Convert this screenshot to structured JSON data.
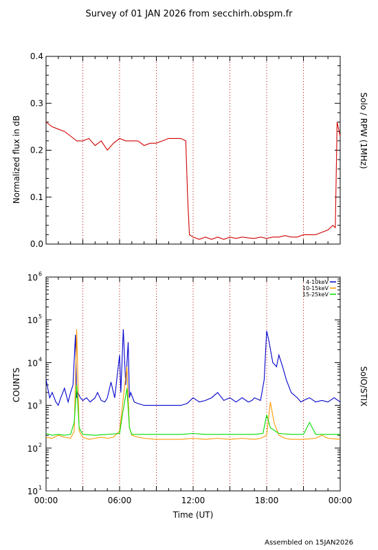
{
  "page": {
    "title": "Survey of 01 JAN 2026 from secchirh.obspm.fr",
    "footer": "Assembled on  15JAN2026"
  },
  "chart_data": [
    {
      "type": "line",
      "panel": "top",
      "ylabel": "Normalized flux in dB",
      "right_label": "Solo / RPW (1MHz)",
      "xlim": [
        0,
        24
      ],
      "ylim": [
        0,
        0.4
      ],
      "y_ticks": [
        "0.0",
        "0.1",
        "0.2",
        "0.3",
        "0.4"
      ],
      "y_tick_values": [
        0,
        0.1,
        0.2,
        0.3,
        0.4
      ],
      "grid_x_hours": [
        3,
        6,
        9,
        12,
        15,
        18,
        21
      ],
      "series": [
        {
          "color": "#d00000",
          "x": [
            0,
            0.5,
            1,
            1.5,
            2,
            2.5,
            3,
            3.5,
            4,
            4.5,
            5,
            5.5,
            6,
            6.5,
            7,
            7.5,
            8,
            8.5,
            9,
            9.5,
            10,
            10.5,
            11,
            11.4,
            11.55,
            11.7,
            12,
            12.5,
            13,
            13.5,
            14,
            14.5,
            15,
            15.5,
            16,
            16.5,
            17,
            17.5,
            18,
            18.5,
            19,
            19.5,
            20,
            20.5,
            21,
            21.5,
            22,
            22.5,
            23,
            23.4,
            23.6,
            23.75,
            24
          ],
          "y": [
            0.26,
            0.25,
            0.245,
            0.24,
            0.23,
            0.22,
            0.22,
            0.225,
            0.21,
            0.22,
            0.2,
            0.215,
            0.225,
            0.22,
            0.22,
            0.22,
            0.21,
            0.215,
            0.215,
            0.22,
            0.225,
            0.225,
            0.225,
            0.22,
            0.1,
            0.02,
            0.015,
            0.01,
            0.015,
            0.01,
            0.015,
            0.01,
            0.015,
            0.012,
            0.015,
            0.013,
            0.012,
            0.015,
            0.012,
            0.015,
            0.015,
            0.018,
            0.015,
            0.015,
            0.02,
            0.02,
            0.02,
            0.025,
            0.03,
            0.04,
            0.035,
            0.26,
            0.23
          ]
        }
      ]
    },
    {
      "type": "line",
      "panel": "bottom",
      "ylabel": "COUNTS",
      "xlabel": "Time (UT)",
      "right_label": "SolO/STIX",
      "yscale": "log",
      "xlim": [
        0,
        24
      ],
      "ylim": [
        10,
        1000000
      ],
      "y_ticks": [
        {
          "base": "10",
          "exp": "1",
          "value": 10
        },
        {
          "base": "10",
          "exp": "2",
          "value": 100
        },
        {
          "base": "10",
          "exp": "3",
          "value": 1000
        },
        {
          "base": "10",
          "exp": "4",
          "value": 10000
        },
        {
          "base": "10",
          "exp": "5",
          "value": 100000
        },
        {
          "base": "10",
          "exp": "6",
          "value": 1000000
        }
      ],
      "x_ticks": [
        "00:00",
        "06:00",
        "12:00",
        "18:00",
        "00:00"
      ],
      "x_tick_hours": [
        0,
        6,
        12,
        18,
        24
      ],
      "grid_x_hours": [
        3,
        6,
        9,
        12,
        15,
        18,
        21
      ],
      "legend_position": "top-right",
      "series": [
        {
          "name": "4-10keV",
          "color": "#0000cc",
          "x": [
            0,
            0.3,
            0.5,
            0.8,
            1,
            1.2,
            1.5,
            1.8,
            2,
            2.2,
            2.4,
            2.5,
            2.6,
            2.8,
            3,
            3.3,
            3.6,
            4,
            4.2,
            4.5,
            4.8,
            5,
            5.3,
            5.6,
            6,
            6.1,
            6.3,
            6.5,
            6.7,
            6.8,
            6.9,
            7.2,
            7.5,
            8,
            8.5,
            9,
            9.5,
            10,
            10.5,
            10.8,
            11,
            11.5,
            12,
            12.5,
            13,
            13.5,
            14,
            14.5,
            15,
            15.5,
            16,
            16.5,
            16.8,
            17,
            17.5,
            17.8,
            18,
            18.2,
            18.5,
            18.8,
            19,
            19.3,
            19.6,
            20,
            20.5,
            20.8,
            21,
            21.5,
            22,
            22.5,
            23,
            23.5,
            24
          ],
          "y": [
            4000,
            1500,
            2000,
            1200,
            1000,
            1500,
            2500,
            1200,
            2000,
            3000,
            45000,
            1500,
            2000,
            1500,
            1300,
            1500,
            1200,
            1500,
            2000,
            1300,
            1200,
            1500,
            3500,
            1500,
            15000,
            2000,
            60000,
            3000,
            30000,
            1500,
            2000,
            1200,
            1100,
            1000,
            1000,
            1000,
            1000,
            1000,
            1000,
            1000,
            1000,
            1100,
            1500,
            1200,
            1300,
            1500,
            2000,
            1300,
            1500,
            1200,
            1500,
            1200,
            1300,
            1500,
            1300,
            4000,
            55000,
            30000,
            10000,
            8000,
            15000,
            8000,
            4000,
            2000,
            1500,
            1200,
            1300,
            1500,
            1200,
            1300,
            1200,
            1500,
            1200
          ]
        },
        {
          "name": "10-15keV",
          "color": "#ff9900",
          "x": [
            0,
            0.5,
            1,
            1.5,
            2,
            2.3,
            2.5,
            2.7,
            3,
            3.5,
            4,
            4.5,
            5,
            5.5,
            6,
            6.3,
            6.6,
            6.8,
            7,
            7.5,
            8,
            9,
            10,
            11,
            12,
            13,
            14,
            15,
            16,
            17,
            17.5,
            18,
            18.3,
            18.6,
            19,
            19.5,
            20,
            21,
            22,
            22.5,
            23,
            24
          ],
          "y": [
            180,
            170,
            200,
            180,
            170,
            250,
            60000,
            250,
            180,
            160,
            170,
            180,
            170,
            180,
            250,
            1500,
            8000,
            300,
            200,
            180,
            170,
            160,
            160,
            160,
            170,
            160,
            170,
            160,
            170,
            160,
            170,
            200,
            1200,
            400,
            200,
            170,
            160,
            160,
            170,
            200,
            170,
            160
          ]
        },
        {
          "name": "15-25keV",
          "color": "#00dd00",
          "x": [
            0,
            0.5,
            1,
            1.5,
            2,
            2.3,
            2.5,
            2.7,
            3,
            4,
            5,
            6,
            6.3,
            6.6,
            6.8,
            7,
            8,
            9,
            10,
            11,
            12,
            13,
            14,
            15,
            16,
            17,
            17.7,
            18,
            18.3,
            19,
            20,
            21,
            21.5,
            22,
            23,
            24
          ],
          "y": [
            220,
            200,
            210,
            200,
            210,
            400,
            3000,
            300,
            210,
            200,
            210,
            220,
            800,
            2500,
            300,
            210,
            210,
            210,
            210,
            210,
            220,
            210,
            210,
            210,
            210,
            210,
            220,
            600,
            300,
            220,
            210,
            210,
            400,
            210,
            210,
            210
          ]
        }
      ]
    }
  ]
}
